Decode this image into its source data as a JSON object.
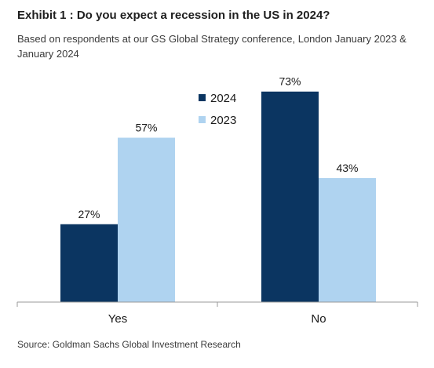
{
  "header": {
    "title": "Exhibit 1 : Do you expect a recession in the US in 2024?",
    "subtitle": "Based on respondents at our GS Global Strategy conference, London January 2023 & January 2024"
  },
  "footer": {
    "source": "Source: Goldman Sachs Global Investment Research"
  },
  "chart_data": {
    "type": "bar",
    "categories": [
      "Yes",
      "No"
    ],
    "series": [
      {
        "name": "2024",
        "values": [
          27,
          73
        ],
        "labels": [
          "27%",
          "73%"
        ],
        "color": "#0b3561"
      },
      {
        "name": "2023",
        "values": [
          57,
          43
        ],
        "labels": [
          "57%",
          "43%"
        ],
        "color": "#afd3f0"
      }
    ],
    "ylim": [
      0,
      80
    ],
    "grid": false,
    "legend": "top-center",
    "title": "",
    "xlabel": "",
    "ylabel": ""
  }
}
